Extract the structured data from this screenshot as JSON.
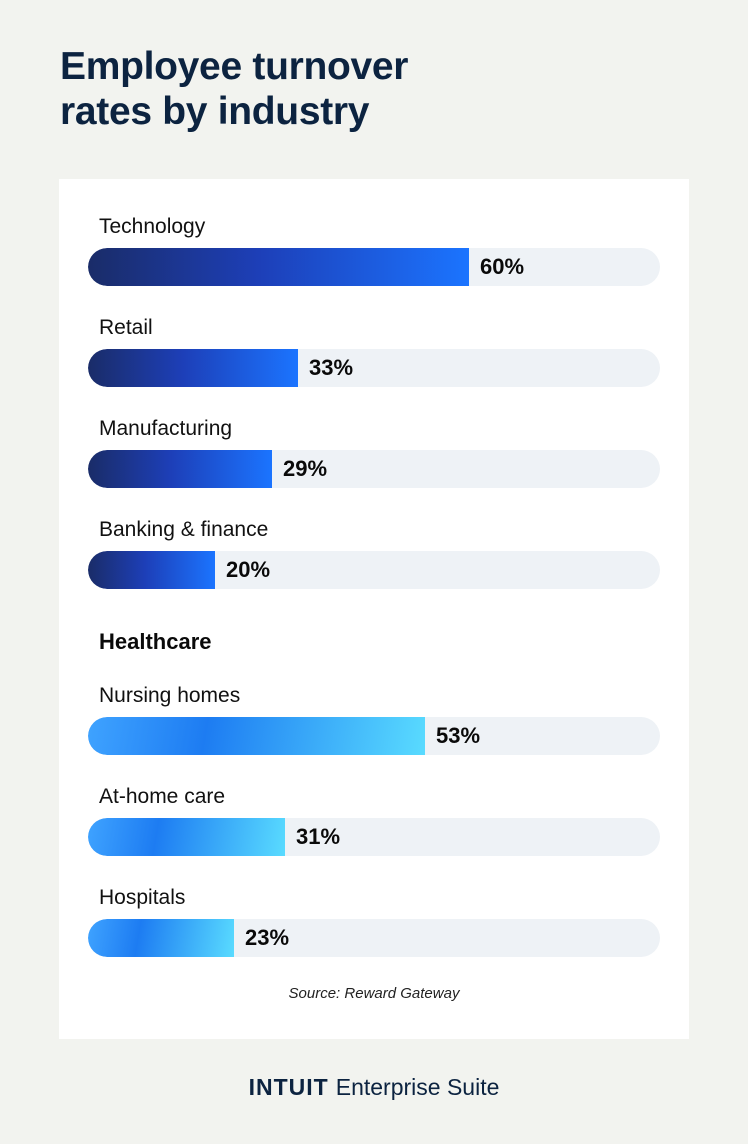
{
  "page": {
    "title_line1": "Employee turnover",
    "title_line2": "rates by industry"
  },
  "chart_data": {
    "type": "bar",
    "orientation": "horizontal",
    "title": "Employee turnover rates by industry",
    "unit": "%",
    "xlim": [
      0,
      90
    ],
    "groups": [
      {
        "heading": "",
        "style": "primary",
        "categories": [
          "Technology",
          "Retail",
          "Manufacturing",
          "Banking & finance"
        ],
        "values": [
          60,
          33,
          29,
          20
        ],
        "labels": [
          "60%",
          "33%",
          "29%",
          "20%"
        ]
      },
      {
        "heading": "Healthcare",
        "style": "secondary",
        "categories": [
          "Nursing homes",
          "At-home care",
          "Hospitals"
        ],
        "values": [
          53,
          31,
          23
        ],
        "labels": [
          "53%",
          "31%",
          "23%"
        ]
      }
    ],
    "source": "Source: Reward Gateway"
  },
  "footer": {
    "brand_logo": "INTUIT",
    "brand_text": "Enterprise Suite"
  },
  "colors": {
    "title": "#0c2340",
    "track": "#eef2f6",
    "primary_start": "#1a2c68",
    "primary_end": "#1b74ff",
    "secondary_start": "#3fa3ff",
    "secondary_end": "#59dbff"
  }
}
